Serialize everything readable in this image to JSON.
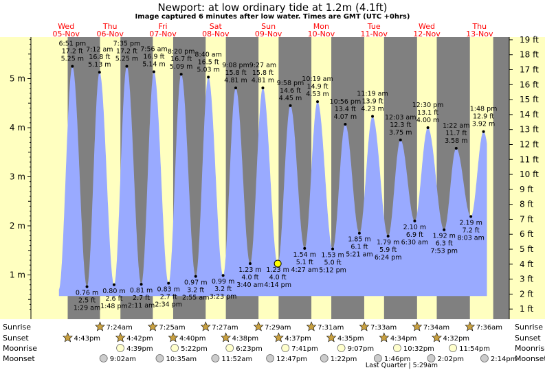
{
  "header": {
    "title": "Newport: at low  ordinary tide at 1.2m (4.1ft)",
    "subtitle": "Image captured 6 minutes after low water. Times are GMT (UTC +0hrs)"
  },
  "colors": {
    "day": "#ffffc0",
    "night": "#808080",
    "tide_fill": "#99aaff",
    "day_label": "#ff0000",
    "sun_icon": "#c8a040",
    "moon_icon": "#ffffcc"
  },
  "chart_data": {
    "type": "area",
    "title": "Newport: at low  ordinary tide at 1.2m (4.1ft)",
    "ylim_m": [
      0.2,
      5.9
    ],
    "left_ticks_m": [
      "1 m",
      "2 m",
      "3 m",
      "4 m",
      "5 m"
    ],
    "right_ticks_ft": [
      "1 ft",
      "2 ft",
      "3 ft",
      "4 ft",
      "5 ft",
      "6 ft",
      "7 ft",
      "8 ft",
      "9 ft",
      "10 ft",
      "11 ft",
      "12 ft",
      "13 ft",
      "14 ft",
      "15 ft",
      "16 ft",
      "17 ft",
      "18 ft",
      "19 ft"
    ],
    "days": [
      {
        "day": "Wed",
        "date": "05-Nov",
        "label_hour": 16.0
      },
      {
        "day": "Thu",
        "date": "06-Nov",
        "label_hour": 36.0
      },
      {
        "day": "Fri",
        "date": "07-Nov",
        "label_hour": 60.0
      },
      {
        "day": "Sat",
        "date": "08-Nov",
        "label_hour": 84.0
      },
      {
        "day": "Sun",
        "date": "09-Nov",
        "label_hour": 108.0
      },
      {
        "day": "Mon",
        "date": "10-Nov",
        "label_hour": 132.0
      },
      {
        "day": "Tue",
        "date": "11-Nov",
        "label_hour": 156.0
      },
      {
        "day": "Wed",
        "date": "12-Nov",
        "label_hour": 180.0
      },
      {
        "day": "Thu",
        "date": "13-Nov",
        "label_hour": 204.0
      }
    ],
    "tides": [
      {
        "time": "6:51 pm",
        "hour": 18.85,
        "m": 5.25,
        "ft": "17.2 ft",
        "m_label": "5.25 m",
        "type": "high"
      },
      {
        "time": "1:29 am",
        "hour": 25.48,
        "m": 0.76,
        "ft": "2.5 ft",
        "m_label": "0.76 m",
        "type": "low"
      },
      {
        "time": "7:12 am",
        "hour": 31.2,
        "m": 5.13,
        "ft": "16.8 ft",
        "m_label": "5.13 m",
        "type": "high"
      },
      {
        "time": "1:48 pm",
        "hour": 37.8,
        "m": 0.8,
        "ft": "2.6 ft",
        "m_label": "0.80 m",
        "type": "low"
      },
      {
        "time": "7:35 pm",
        "hour": 43.58,
        "m": 5.25,
        "ft": "17.2 ft",
        "m_label": "5.25 m",
        "type": "high"
      },
      {
        "time": "2:11 am",
        "hour": 50.18,
        "m": 0.81,
        "ft": "2.7 ft",
        "m_label": "0.81 m",
        "type": "low"
      },
      {
        "time": "7:56 am",
        "hour": 55.93,
        "m": 5.14,
        "ft": "16.9 ft",
        "m_label": "5.14 m",
        "type": "high"
      },
      {
        "time": "2:34 pm",
        "hour": 62.57,
        "m": 0.83,
        "ft": "2.7 ft",
        "m_label": "0.83 m",
        "type": "low"
      },
      {
        "time": "8:20 pm",
        "hour": 68.33,
        "m": 5.09,
        "ft": "16.7 ft",
        "m_label": "5.09 m",
        "type": "high"
      },
      {
        "time": "2:55 am",
        "hour": 74.92,
        "m": 0.97,
        "ft": "3.2 ft",
        "m_label": "0.97 m",
        "type": "low"
      },
      {
        "time": "8:40 am",
        "hour": 80.67,
        "m": 5.03,
        "ft": "16.5 ft",
        "m_label": "5.03 m",
        "type": "high"
      },
      {
        "time": "3:23 pm",
        "hour": 87.38,
        "m": 0.99,
        "ft": "3.2 ft",
        "m_label": "0.99 m",
        "type": "low"
      },
      {
        "time": "9:08 pm",
        "hour": 93.13,
        "m": 4.81,
        "ft": "15.8 ft",
        "m_label": "4.81 m",
        "type": "high"
      },
      {
        "time": "3:40 am",
        "hour": 99.67,
        "m": 1.23,
        "ft": "4.0 ft",
        "m_label": "1.23 m",
        "type": "low"
      },
      {
        "time": "9:27 am",
        "hour": 105.45,
        "m": 4.81,
        "ft": "15.8 ft",
        "m_label": "4.81 m",
        "type": "high"
      },
      {
        "time": "4:14 pm",
        "hour": 112.23,
        "m": 1.23,
        "ft": "4.0 ft",
        "m_label": "1.23 m",
        "type": "low",
        "current": true
      },
      {
        "time": "9:58 pm",
        "hour": 117.97,
        "m": 4.45,
        "ft": "14.6 ft",
        "m_label": "4.45 m",
        "type": "high"
      },
      {
        "time": "4:27 am",
        "hour": 124.45,
        "m": 1.54,
        "ft": "5.1 ft",
        "m_label": "1.54 m",
        "type": "low"
      },
      {
        "time": "10:19 am",
        "hour": 130.32,
        "m": 4.53,
        "ft": "14.9 ft",
        "m_label": "4.53 m",
        "type": "high"
      },
      {
        "time": "5:12 pm",
        "hour": 137.2,
        "m": 1.53,
        "ft": "5.0 ft",
        "m_label": "1.53 m",
        "type": "low"
      },
      {
        "time": "10:56 pm",
        "hour": 142.93,
        "m": 4.07,
        "ft": "13.4 ft",
        "m_label": "4.07 m",
        "type": "high"
      },
      {
        "time": "5:21 am",
        "hour": 149.35,
        "m": 1.85,
        "ft": "6.1 ft",
        "m_label": "1.85 m",
        "type": "low"
      },
      {
        "time": "11:19 am",
        "hour": 155.32,
        "m": 4.23,
        "ft": "13.9 ft",
        "m_label": "4.23 m",
        "type": "high"
      },
      {
        "time": "6:24 pm",
        "hour": 162.4,
        "m": 1.79,
        "ft": "5.9 ft",
        "m_label": "1.79 m",
        "type": "low"
      },
      {
        "time": "12:03 am",
        "hour": 168.05,
        "m": 3.75,
        "ft": "12.3 ft",
        "m_label": "3.75 m",
        "type": "high"
      },
      {
        "time": "6:30 am",
        "hour": 174.5,
        "m": 2.1,
        "ft": "6.9 ft",
        "m_label": "2.10 m",
        "type": "low"
      },
      {
        "time": "12:30 pm",
        "hour": 180.5,
        "m": 4.0,
        "ft": "13.1 ft",
        "m_label": "4.00 m",
        "type": "high"
      },
      {
        "time": "7:53 pm",
        "hour": 187.88,
        "m": 1.92,
        "ft": "6.3 ft",
        "m_label": "1.92 m",
        "type": "low"
      },
      {
        "time": "1:22 am",
        "hour": 193.37,
        "m": 3.58,
        "ft": "11.7 ft",
        "m_label": "3.58 m",
        "type": "high"
      },
      {
        "time": "8:03 am",
        "hour": 200.05,
        "m": 2.19,
        "ft": "7.2 ft",
        "m_label": "2.19 m",
        "type": "low"
      },
      {
        "time": "1:48 pm",
        "hour": 205.8,
        "m": 3.92,
        "ft": "12.9 ft",
        "m_label": "3.92 m",
        "type": "high"
      }
    ],
    "daylight": [
      {
        "rise": 0,
        "set": 16.72
      },
      {
        "rise": 31.4,
        "set": 40.7
      },
      {
        "rise": 55.42,
        "set": 64.67
      },
      {
        "rise": 79.45,
        "set": 88.63
      },
      {
        "rise": 103.48,
        "set": 112.62
      },
      {
        "rise": 127.52,
        "set": 136.58
      },
      {
        "rise": 151.55,
        "set": 160.57
      },
      {
        "rise": 175.57,
        "set": 184.53
      },
      {
        "rise": 199.6,
        "set": 210.2
      }
    ]
  },
  "almanac": {
    "row_labels": [
      "Sunrise",
      "Sunset",
      "Moonrise",
      "Moonset"
    ],
    "sunrise": [
      {
        "hour": 31.4,
        "text": "7:24am"
      },
      {
        "hour": 55.42,
        "text": "7:25am"
      },
      {
        "hour": 79.45,
        "text": "7:27am"
      },
      {
        "hour": 103.48,
        "text": "7:29am"
      },
      {
        "hour": 127.52,
        "text": "7:31am"
      },
      {
        "hour": 151.55,
        "text": "7:33am"
      },
      {
        "hour": 175.57,
        "text": "7:34am"
      },
      {
        "hour": 199.6,
        "text": "7:36am"
      }
    ],
    "sunset": [
      {
        "hour": 16.72,
        "text": "4:43pm"
      },
      {
        "hour": 40.7,
        "text": "4:42pm"
      },
      {
        "hour": 64.67,
        "text": "4:40pm"
      },
      {
        "hour": 88.63,
        "text": "4:38pm"
      },
      {
        "hour": 112.62,
        "text": "4:37pm"
      },
      {
        "hour": 136.58,
        "text": "4:35pm"
      },
      {
        "hour": 160.57,
        "text": "4:34pm"
      },
      {
        "hour": 184.53,
        "text": "4:32pm"
      }
    ],
    "moonrise": [
      {
        "hour": 40.65,
        "text": "4:39pm"
      },
      {
        "hour": 65.37,
        "text": "5:22pm"
      },
      {
        "hour": 90.38,
        "text": "6:23pm"
      },
      {
        "hour": 115.68,
        "text": "7:41pm"
      },
      {
        "hour": 141.12,
        "text": "9:07pm"
      },
      {
        "hour": 166.53,
        "text": "10:32pm"
      },
      {
        "hour": 191.9,
        "text": "11:54pm"
      }
    ],
    "moonset": [
      {
        "hour": 33.03,
        "text": "9:02am"
      },
      {
        "hour": 58.58,
        "text": "10:35am"
      },
      {
        "hour": 83.87,
        "text": "11:52am"
      },
      {
        "hour": 108.78,
        "text": "12:47pm"
      },
      {
        "hour": 133.37,
        "text": "1:22pm"
      },
      {
        "hour": 157.77,
        "text": "1:46pm"
      },
      {
        "hour": 182.03,
        "text": "2:02pm"
      },
      {
        "hour": 206.23,
        "text": "2:14pm"
      }
    ],
    "moon_phase": "Last Quarter | 5:29am"
  }
}
